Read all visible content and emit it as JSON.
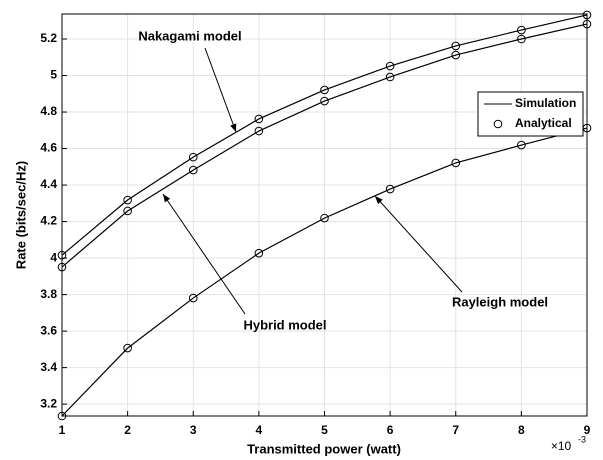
{
  "chart_data": {
    "type": "line",
    "x": [
      1,
      2,
      3,
      4,
      5,
      6,
      7,
      8,
      9
    ],
    "x_multiplier": "×10",
    "x_exponent": "-3",
    "xlabel": "Transmitted power (watt)",
    "ylabel": "Rate (bits/sec/Hz)",
    "xlim": [
      1,
      9
    ],
    "xticks": [
      1,
      2,
      3,
      4,
      5,
      6,
      7,
      8,
      9
    ],
    "ylim": [
      3.135,
      5.337
    ],
    "yticks": [
      3.2,
      3.4,
      3.6,
      3.8,
      4,
      4.2,
      4.4,
      4.6,
      4.8,
      5,
      5.2
    ],
    "grid": true,
    "color": "#000000",
    "legend": [
      "Simulation",
      "Analytical"
    ],
    "legend_position": "upper right",
    "series": [
      {
        "values": [
          4.016,
          4.318,
          4.553,
          4.762,
          4.921,
          5.052,
          5.162,
          5.249,
          5.332
        ]
      },
      {
        "values": [
          3.951,
          4.258,
          4.482,
          4.696,
          4.86,
          4.992,
          5.112,
          5.2,
          5.282
        ]
      },
      {
        "values": [
          3.135,
          3.507,
          3.781,
          4.027,
          4.219,
          4.378,
          4.521,
          4.619,
          4.712
        ]
      }
    ],
    "annotations": [
      "Nakagami model",
      "Hybrid model",
      "Rayleigh model"
    ]
  }
}
